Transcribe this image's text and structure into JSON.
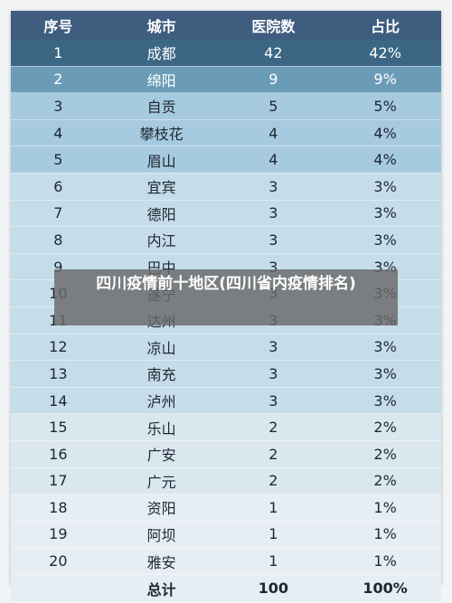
{
  "table": {
    "headers": [
      "序号",
      "城市",
      "医院数",
      "占比"
    ],
    "rows": [
      [
        "1",
        "成都",
        "42",
        "42%"
      ],
      [
        "2",
        "绵阳",
        "9",
        "9%"
      ],
      [
        "3",
        "自贡",
        "5",
        "5%"
      ],
      [
        "4",
        "攀枝花",
        "4",
        "4%"
      ],
      [
        "5",
        "眉山",
        "4",
        "4%"
      ],
      [
        "6",
        "宜宾",
        "3",
        "3%"
      ],
      [
        "7",
        "德阳",
        "3",
        "3%"
      ],
      [
        "8",
        "内江",
        "3",
        "3%"
      ],
      [
        "9",
        "巴中",
        "3",
        "3%"
      ],
      [
        "10",
        "遂宁",
        "3",
        "3%"
      ],
      [
        "11",
        "达州",
        "3",
        "3%"
      ],
      [
        "12",
        "凉山",
        "3",
        "3%"
      ],
      [
        "13",
        "南充",
        "3",
        "3%"
      ],
      [
        "14",
        "泸州",
        "3",
        "3%"
      ],
      [
        "15",
        "乐山",
        "2",
        "2%"
      ],
      [
        "16",
        "广安",
        "2",
        "2%"
      ],
      [
        "17",
        "广元",
        "2",
        "2%"
      ],
      [
        "18",
        "资阳",
        "1",
        "1%"
      ],
      [
        "19",
        "阿坝",
        "1",
        "1%"
      ],
      [
        "20",
        "雅安",
        "1",
        "1%"
      ]
    ],
    "total": [
      "",
      "总计",
      "100",
      "100%"
    ]
  },
  "overlay": {
    "title": "四川疫情前十地区(四川省内疫情排名)"
  },
  "colors": {
    "header": "#3e5d7f",
    "row_42": "#3b6784",
    "row_9": "#6a9cb8",
    "row_5_4": "#a6cadf",
    "row_3": "#c5dde8",
    "row_2_1": "#dbe7ef",
    "total": "#e6edf3"
  }
}
